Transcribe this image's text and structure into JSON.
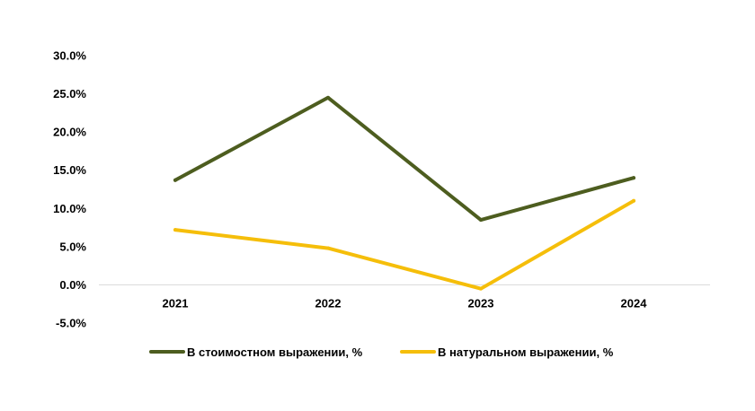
{
  "chart_data": {
    "type": "line",
    "title": "",
    "xlabel": "",
    "ylabel": "",
    "categories": [
      "2021",
      "2022",
      "2023",
      "2024"
    ],
    "ylim": [
      -5,
      30
    ],
    "yticks": [
      30,
      25,
      20,
      15,
      10,
      5,
      0,
      -5
    ],
    "ytick_labels": [
      "30.0%",
      "25.0%",
      "20.0%",
      "15.0%",
      "10.0%",
      "5.0%",
      "0.0%",
      "-5.0%"
    ],
    "grid": false,
    "legend_position": "bottom",
    "series": [
      {
        "name": "В стоимостном выражении, %",
        "values": [
          13.7,
          24.5,
          8.5,
          14.0
        ],
        "color": "#4d5d1f"
      },
      {
        "name": "В натуральном выражении, %",
        "values": [
          7.2,
          4.8,
          -0.5,
          11.0
        ],
        "color": "#f5be0a"
      }
    ]
  }
}
